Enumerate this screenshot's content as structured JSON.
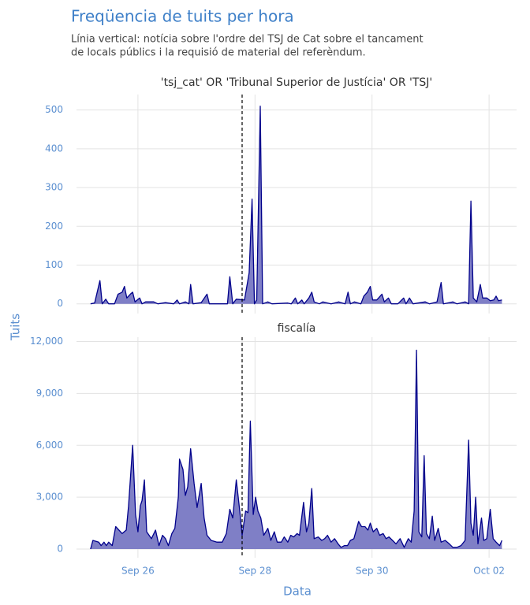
{
  "title": "Freqüencia de tuits per hora",
  "subtitle": [
    "Línia vertical: notícia sobre l'ordre del TSJ de Cat sobre el tancament",
    "de locals públics i la requisió de material del referèndum."
  ],
  "xlabel": "Data",
  "ylabel": "Tuits",
  "chart_data": [
    {
      "type": "area",
      "title": "'tsj_cat' OR 'Tribunal Superior de Justícia' OR 'TSJ'",
      "color": "#00008b",
      "fill": "#7f7fc6",
      "vline": 27.78,
      "grid": true,
      "xlim": [
        24.95,
        32.47
      ],
      "xticks": [
        26,
        28,
        30,
        32
      ],
      "ylim": [
        -25,
        540
      ],
      "yticks": [
        0,
        100,
        200,
        300,
        400,
        500
      ],
      "x": [
        25.19,
        25.26,
        25.35,
        25.39,
        25.45,
        25.5,
        25.6,
        25.66,
        25.73,
        25.77,
        25.81,
        25.87,
        25.91,
        25.95,
        26.03,
        26.07,
        26.13,
        26.27,
        26.34,
        26.47,
        26.61,
        26.67,
        26.71,
        26.81,
        26.87,
        26.9,
        26.94,
        27.08,
        27.18,
        27.22,
        27.53,
        27.57,
        27.62,
        27.68,
        27.82,
        27.9,
        27.95,
        27.99,
        28.03,
        28.09,
        28.13,
        28.22,
        28.29,
        28.56,
        28.62,
        28.69,
        28.73,
        28.8,
        28.84,
        28.92,
        28.97,
        29.01,
        29.1,
        29.16,
        29.3,
        29.43,
        29.54,
        29.59,
        29.63,
        29.7,
        29.81,
        29.86,
        29.92,
        29.97,
        30.01,
        30.08,
        30.17,
        30.21,
        30.28,
        30.33,
        30.44,
        30.54,
        30.58,
        30.64,
        30.7,
        30.91,
        30.98,
        31.11,
        31.18,
        31.22,
        31.38,
        31.45,
        31.59,
        31.65,
        31.69,
        31.73,
        31.79,
        31.85,
        31.89,
        31.96,
        32.02,
        32.08,
        32.12,
        32.16,
        32.22
      ],
      "values": [
        0,
        2,
        60,
        0,
        12,
        0,
        0,
        25,
        30,
        45,
        15,
        25,
        30,
        5,
        15,
        0,
        5,
        5,
        0,
        3,
        0,
        10,
        0,
        5,
        0,
        50,
        0,
        3,
        25,
        0,
        0,
        70,
        0,
        12,
        10,
        80,
        270,
        0,
        10,
        510,
        0,
        5,
        0,
        2,
        0,
        15,
        0,
        10,
        0,
        15,
        30,
        5,
        0,
        5,
        0,
        5,
        0,
        30,
        0,
        5,
        0,
        20,
        30,
        45,
        10,
        10,
        25,
        5,
        15,
        0,
        0,
        15,
        0,
        15,
        0,
        5,
        0,
        5,
        55,
        0,
        5,
        0,
        5,
        0,
        265,
        15,
        5,
        50,
        15,
        15,
        8,
        10,
        20,
        8,
        10
      ]
    },
    {
      "type": "area",
      "title": "fiscalía",
      "color": "#00008b",
      "fill": "#7f7fc6",
      "vline": 27.78,
      "grid": true,
      "xlim": [
        24.95,
        32.47
      ],
      "xticks": [
        {
          "value": 26,
          "label": "Sep 26"
        },
        {
          "value": 28,
          "label": "Sep 28"
        },
        {
          "value": 30,
          "label": "Sep 30"
        },
        {
          "value": 32,
          "label": "Oct 02"
        }
      ],
      "ylim": [
        -500,
        12250
      ],
      "yticks": [
        0,
        {
          "value": 3000,
          "label": "3,000"
        },
        {
          "value": 6000,
          "label": "6,000"
        },
        {
          "value": 9000,
          "label": "9,000"
        },
        {
          "value": 12000,
          "label": "12,000"
        }
      ],
      "x": [
        25.19,
        25.23,
        25.33,
        25.37,
        25.42,
        25.46,
        25.5,
        25.56,
        25.62,
        25.73,
        25.8,
        25.84,
        25.91,
        25.96,
        26.0,
        26.04,
        26.07,
        26.11,
        26.15,
        26.23,
        26.3,
        26.36,
        26.42,
        26.47,
        26.52,
        26.58,
        26.63,
        26.69,
        26.71,
        26.77,
        26.81,
        26.85,
        26.9,
        26.96,
        27.01,
        27.08,
        27.13,
        27.18,
        27.25,
        27.35,
        27.44,
        27.51,
        27.57,
        27.62,
        27.68,
        27.74,
        27.78,
        27.84,
        27.88,
        27.92,
        27.97,
        28.01,
        28.05,
        28.1,
        28.15,
        28.22,
        28.27,
        28.33,
        28.38,
        28.45,
        28.5,
        28.56,
        28.61,
        28.66,
        28.72,
        28.76,
        28.83,
        28.88,
        28.92,
        28.97,
        29.01,
        29.08,
        29.14,
        29.19,
        29.24,
        29.3,
        29.36,
        29.42,
        29.47,
        29.53,
        29.58,
        29.63,
        29.69,
        29.77,
        29.82,
        29.88,
        29.93,
        29.97,
        30.02,
        30.08,
        30.13,
        30.19,
        30.24,
        30.29,
        30.35,
        30.41,
        30.48,
        30.55,
        30.62,
        30.67,
        30.72,
        30.76,
        30.8,
        30.85,
        30.89,
        30.93,
        30.98,
        31.03,
        31.07,
        31.13,
        31.18,
        31.25,
        31.32,
        31.38,
        31.45,
        31.52,
        31.59,
        31.65,
        31.69,
        31.73,
        31.77,
        31.81,
        31.87,
        31.91,
        31.96,
        32.02,
        32.07,
        32.12,
        32.18,
        32.22
      ],
      "values": [
        0,
        500,
        400,
        200,
        400,
        200,
        400,
        200,
        1300,
        900,
        1100,
        2500,
        6000,
        2000,
        1000,
        2500,
        2800,
        4000,
        1000,
        600,
        1100,
        200,
        800,
        600,
        200,
        900,
        1200,
        3000,
        5200,
        4600,
        3100,
        3600,
        5800,
        3800,
        2400,
        3800,
        1800,
        800,
        500,
        400,
        400,
        900,
        2300,
        1800,
        4000,
        2200,
        800,
        2200,
        2100,
        7400,
        2000,
        3000,
        2200,
        1800,
        800,
        1200,
        500,
        1000,
        400,
        400,
        700,
        400,
        800,
        700,
        900,
        800,
        2700,
        1000,
        1500,
        3500,
        600,
        700,
        500,
        600,
        800,
        400,
        600,
        300,
        100,
        200,
        200,
        500,
        600,
        1600,
        1300,
        1300,
        1100,
        1500,
        1000,
        1200,
        800,
        900,
        600,
        700,
        500,
        300,
        600,
        100,
        600,
        400,
        2200,
        11500,
        1000,
        700,
        5400,
        900,
        600,
        1900,
        500,
        1200,
        400,
        500,
        300,
        100,
        100,
        200,
        500,
        6300,
        1500,
        800,
        3000,
        300,
        1800,
        500,
        600,
        2300,
        600,
        400,
        200,
        500
      ]
    }
  ]
}
